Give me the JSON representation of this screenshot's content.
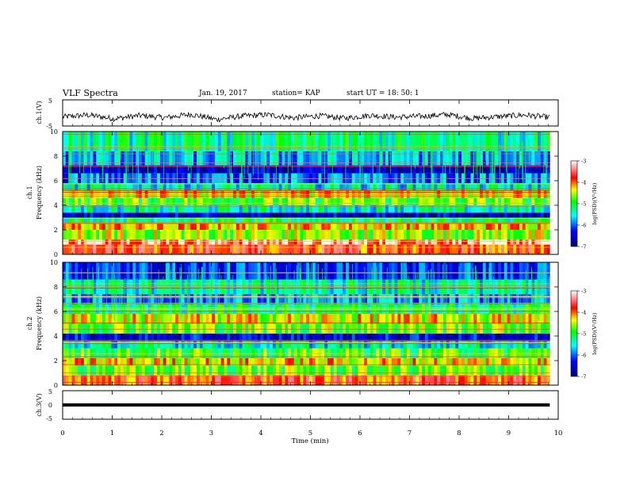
{
  "header": {
    "title": "VLF Spectra",
    "date": "Jan. 19, 2017",
    "station": "station= KAP",
    "start": "start UT = 18: 50: 1"
  },
  "chart_data": [
    {
      "type": "line",
      "panel": "ch1-waveform",
      "ylabel": "ch.1(V)",
      "ylim": [
        -5,
        5
      ],
      "yticks": [
        "5",
        "-5"
      ],
      "x_range_min": [
        0,
        9.83
      ],
      "description_level": "noisy waveform fluctuating roughly between -3 and 0 V",
      "approx_series": [
        -1.5,
        -0.8,
        -2.2,
        -1.0,
        -1.8,
        -0.5,
        -2.5,
        -1.2,
        -0.7,
        -1.9,
        -1.1,
        -2.0,
        -0.9,
        -1.6,
        -1.3,
        -0.6,
        -2.1,
        -1.4,
        -0.8,
        -1.7
      ]
    },
    {
      "type": "heatmap",
      "panel": "ch1-spectrogram",
      "ylabel_top": "ch.1",
      "ylabel": "Frequency (kHz)",
      "ylim": [
        0,
        10
      ],
      "yticks": [
        "0",
        "2",
        "4",
        "6",
        "8",
        "10"
      ],
      "xlim": [
        0,
        10
      ],
      "colorbar": {
        "label": "log(PSD)(V²/Hz)",
        "range": [
          -7,
          -3
        ],
        "ticks": [
          "-3",
          "-4",
          "-5",
          "-6",
          "-7"
        ]
      },
      "bands_khz": [
        {
          "from": 0,
          "to": 0.8,
          "level": -3.8
        },
        {
          "from": 0.8,
          "to": 1.2,
          "level": -3.3
        },
        {
          "from": 1.2,
          "to": 2.0,
          "level": -4.6
        },
        {
          "from": 2.0,
          "to": 2.5,
          "level": -4.2
        },
        {
          "from": 2.5,
          "to": 3.0,
          "level": -5.2
        },
        {
          "from": 3.0,
          "to": 3.4,
          "level": -6.6
        },
        {
          "from": 3.4,
          "to": 4.0,
          "level": -5.4
        },
        {
          "from": 4.0,
          "to": 4.6,
          "level": -4.8
        },
        {
          "from": 4.6,
          "to": 5.2,
          "level": -4.3
        },
        {
          "from": 5.2,
          "to": 5.8,
          "level": -5.5
        },
        {
          "from": 5.8,
          "to": 6.6,
          "level": -6.0
        },
        {
          "from": 6.6,
          "to": 7.2,
          "level": -6.7
        },
        {
          "from": 7.2,
          "to": 8.4,
          "level": -5.8
        },
        {
          "from": 8.4,
          "to": 10.0,
          "level": -5.3
        }
      ]
    },
    {
      "type": "heatmap",
      "panel": "ch2-spectrogram",
      "ylabel_top": "ch.2",
      "ylabel": "Frequency (kHz)",
      "ylim": [
        0,
        10
      ],
      "yticks": [
        "0",
        "2",
        "4",
        "6",
        "8",
        "10"
      ],
      "xlim": [
        0,
        10
      ],
      "colorbar": {
        "label": "log(PSD)(V²/Hz)",
        "range": [
          -7,
          -3
        ],
        "ticks": [
          "-3",
          "-4",
          "-5",
          "-6",
          "-7"
        ]
      },
      "bands_khz": [
        {
          "from": 0,
          "to": 0.8,
          "level": -3.9
        },
        {
          "from": 0.8,
          "to": 1.6,
          "level": -4.8
        },
        {
          "from": 1.6,
          "to": 2.2,
          "level": -4.3
        },
        {
          "from": 2.2,
          "to": 3.0,
          "level": -4.9
        },
        {
          "from": 3.0,
          "to": 3.6,
          "level": -5.5
        },
        {
          "from": 3.6,
          "to": 4.2,
          "level": -6.5
        },
        {
          "from": 4.2,
          "to": 5.0,
          "level": -4.7
        },
        {
          "from": 5.0,
          "to": 5.8,
          "level": -4.4
        },
        {
          "from": 5.8,
          "to": 6.6,
          "level": -5.2
        },
        {
          "from": 6.6,
          "to": 7.4,
          "level": -5.9
        },
        {
          "from": 7.4,
          "to": 8.6,
          "level": -5.4
        },
        {
          "from": 8.6,
          "to": 10.0,
          "level": -6.2
        }
      ]
    },
    {
      "type": "line",
      "panel": "ch3-waveform",
      "ylabel": "ch.3(V)",
      "ylim": [
        -5,
        5
      ],
      "yticks": [
        "5",
        "0",
        "-5"
      ],
      "flat_value": 0,
      "x_range_min": [
        0,
        9.83
      ],
      "xlabel": "Time (min)",
      "xticks": [
        "0",
        "1",
        "2",
        "3",
        "4",
        "5",
        "6",
        "7",
        "8",
        "9",
        "10"
      ]
    }
  ]
}
